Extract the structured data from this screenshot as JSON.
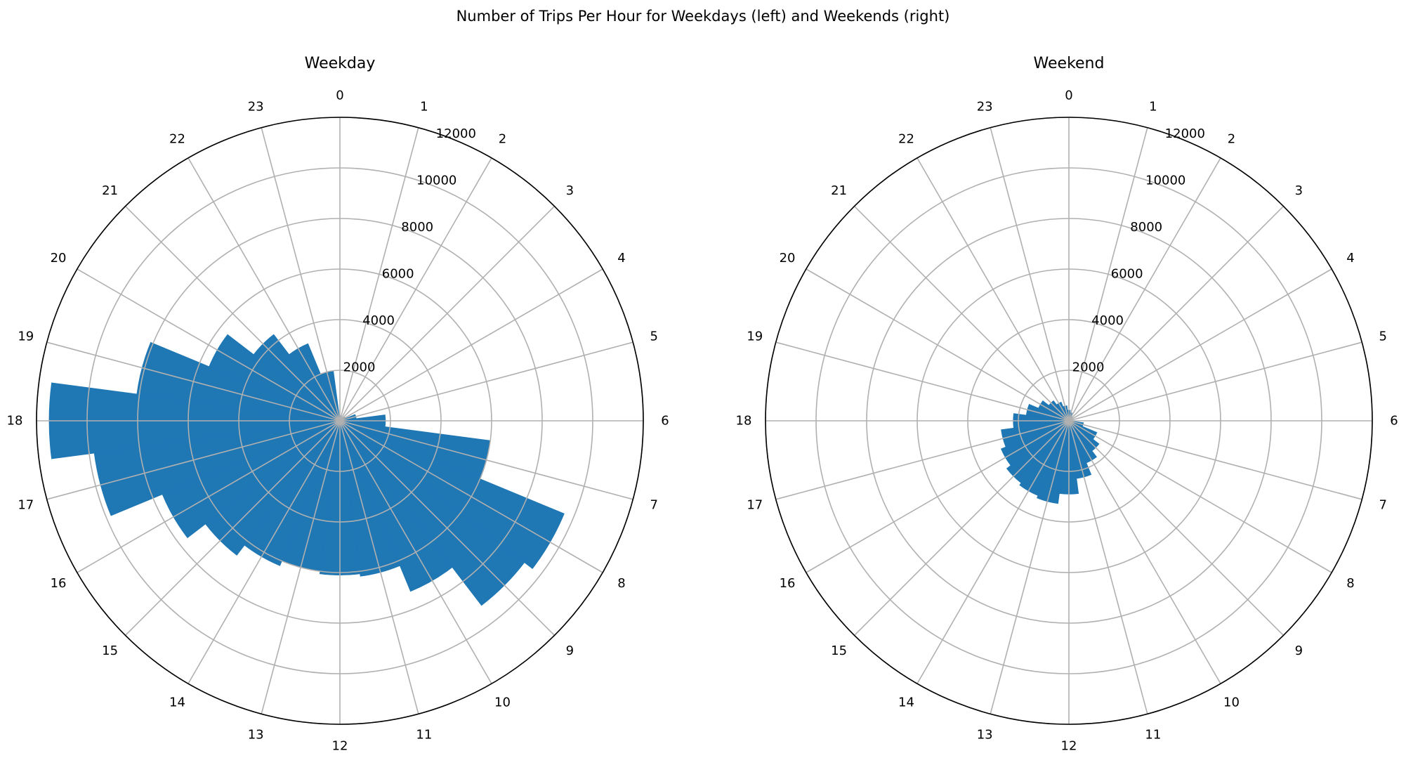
{
  "figure": {
    "suptitle": "Number of Trips Per Hour for Weekdays (left) and Weekends (right)"
  },
  "chart_data": [
    {
      "type": "polar-bar",
      "title": "Weekday",
      "direction": "clockwise",
      "zero_location": "top",
      "angular_ticks": [
        "0",
        "1",
        "2",
        "3",
        "4",
        "5",
        "6",
        "7",
        "8",
        "9",
        "10",
        "11",
        "12",
        "13",
        "14",
        "15",
        "16",
        "17",
        "18",
        "19",
        "20",
        "21",
        "22",
        "23"
      ],
      "radial_ticks": [
        "2000",
        "4000",
        "6000",
        "8000",
        "10000",
        "12000"
      ],
      "rlim": [
        0,
        12000
      ],
      "color": "#1f77b4",
      "grid": true,
      "hours": [
        0,
        1,
        2,
        3,
        4,
        5,
        6,
        7,
        8,
        9,
        10,
        11,
        12,
        13,
        14,
        15,
        16,
        17,
        18,
        19,
        20,
        21,
        22,
        23
      ],
      "values": [
        200,
        120,
        80,
        120,
        230,
        650,
        1800,
        6000,
        9600,
        9200,
        7300,
        6200,
        6100,
        6000,
        6200,
        6700,
        7600,
        9800,
        11500,
        8100,
        5600,
        4300,
        3300,
        2000
      ]
    },
    {
      "type": "polar-bar",
      "title": "Weekend",
      "direction": "clockwise",
      "zero_location": "top",
      "angular_ticks": [
        "0",
        "1",
        "2",
        "3",
        "4",
        "5",
        "6",
        "7",
        "8",
        "9",
        "10",
        "11",
        "12",
        "13",
        "14",
        "15",
        "16",
        "17",
        "18",
        "19",
        "20",
        "21",
        "22",
        "23"
      ],
      "radial_ticks": [
        "2000",
        "4000",
        "6000",
        "8000",
        "10000",
        "12000"
      ],
      "rlim": [
        0,
        12000
      ],
      "color": "#1f77b4",
      "grid": true,
      "hours": [
        0,
        1,
        2,
        3,
        4,
        5,
        6,
        7,
        8,
        9,
        10,
        11,
        12,
        13,
        14,
        15,
        16,
        17,
        18,
        19,
        20,
        21,
        22,
        23
      ],
      "values": [
        420,
        330,
        200,
        90,
        60,
        60,
        130,
        580,
        1200,
        1500,
        1800,
        2300,
        2900,
        3300,
        3200,
        3100,
        2900,
        2700,
        2200,
        1700,
        1300,
        1000,
        800,
        600
      ]
    }
  ]
}
